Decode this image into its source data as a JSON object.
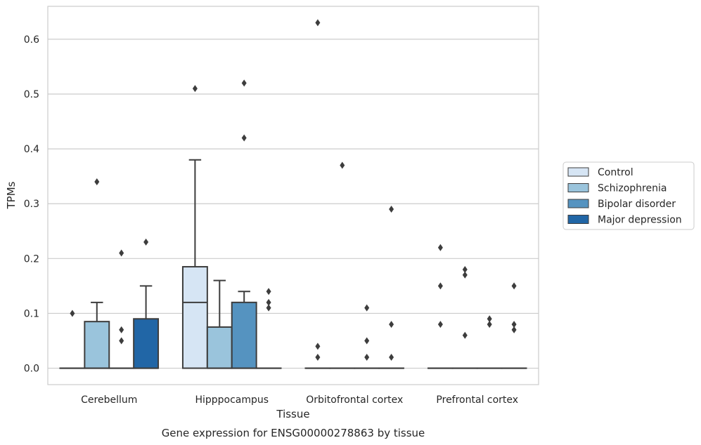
{
  "caption": "Gene expression for ENSG00000278863 by tissue",
  "chart_data": {
    "type": "box",
    "title": "",
    "xlabel": "Tissue",
    "ylabel": "TPMs",
    "ylim": [
      -0.03,
      0.66
    ],
    "yticks": [
      0.0,
      0.1,
      0.2,
      0.3,
      0.4,
      0.5,
      0.6
    ],
    "ytick_labels": [
      "0.0",
      "0.1",
      "0.2",
      "0.3",
      "0.4",
      "0.5",
      "0.6"
    ],
    "grid": "horizontal",
    "legend_position": "right",
    "categories": [
      "Cerebellum",
      "Hipppocampus",
      "Orbitofrontal cortex",
      "Prefrontal cortex"
    ],
    "series": [
      {
        "name": "Control",
        "color": "#d6e5f4",
        "boxes": [
          {
            "q1": 0,
            "median": 0,
            "q3": 0,
            "whisker_low": 0,
            "whisker_high": 0,
            "outliers": [
              0.1
            ]
          },
          {
            "q1": 0,
            "median": 0.12,
            "q3": 0.185,
            "whisker_low": 0,
            "whisker_high": 0.38,
            "outliers": [
              0.51
            ]
          },
          {
            "q1": 0,
            "median": 0,
            "q3": 0,
            "whisker_low": 0,
            "whisker_high": 0,
            "outliers": [
              0.63,
              0.04,
              0.02
            ]
          },
          {
            "q1": 0,
            "median": 0,
            "q3": 0,
            "whisker_low": 0,
            "whisker_high": 0,
            "outliers": [
              0.22,
              0.15,
              0.08
            ]
          }
        ]
      },
      {
        "name": "Schizophrenia",
        "color": "#9ac4dc",
        "boxes": [
          {
            "q1": 0,
            "median": 0,
            "q3": 0.085,
            "whisker_low": 0,
            "whisker_high": 0.12,
            "outliers": [
              0.34
            ]
          },
          {
            "q1": 0,
            "median": 0,
            "q3": 0.075,
            "whisker_low": 0,
            "whisker_high": 0.16,
            "outliers": []
          },
          {
            "q1": 0,
            "median": 0,
            "q3": 0,
            "whisker_low": 0,
            "whisker_high": 0,
            "outliers": [
              0.37
            ]
          },
          {
            "q1": 0,
            "median": 0,
            "q3": 0,
            "whisker_low": 0,
            "whisker_high": 0,
            "outliers": [
              0.18,
              0.17,
              0.06
            ]
          }
        ]
      },
      {
        "name": "Bipolar disorder",
        "color": "#5593c0",
        "boxes": [
          {
            "q1": 0,
            "median": 0,
            "q3": 0,
            "whisker_low": 0,
            "whisker_high": 0,
            "outliers": [
              0.21,
              0.07,
              0.05
            ]
          },
          {
            "q1": 0,
            "median": 0,
            "q3": 0.12,
            "whisker_low": 0,
            "whisker_high": 0.14,
            "outliers": [
              0.52,
              0.42
            ]
          },
          {
            "q1": 0,
            "median": 0,
            "q3": 0,
            "whisker_low": 0,
            "whisker_high": 0,
            "outliers": [
              0.11,
              0.05,
              0.02
            ]
          },
          {
            "q1": 0,
            "median": 0,
            "q3": 0,
            "whisker_low": 0,
            "whisker_high": 0,
            "outliers": [
              0.09,
              0.08
            ]
          }
        ]
      },
      {
        "name": "Major depression",
        "color": "#2166a6",
        "boxes": [
          {
            "q1": 0,
            "median": 0,
            "q3": 0.09,
            "whisker_low": 0,
            "whisker_high": 0.15,
            "outliers": [
              0.23
            ]
          },
          {
            "q1": 0,
            "median": 0,
            "q3": 0,
            "whisker_low": 0,
            "whisker_high": 0,
            "outliers": [
              0.14,
              0.12,
              0.11
            ]
          },
          {
            "q1": 0,
            "median": 0,
            "q3": 0,
            "whisker_low": 0,
            "whisker_high": 0,
            "outliers": [
              0.29,
              0.08,
              0.02
            ]
          },
          {
            "q1": 0,
            "median": 0,
            "q3": 0,
            "whisker_low": 0,
            "whisker_high": 0,
            "outliers": [
              0.15,
              0.08,
              0.07
            ]
          }
        ]
      }
    ]
  }
}
